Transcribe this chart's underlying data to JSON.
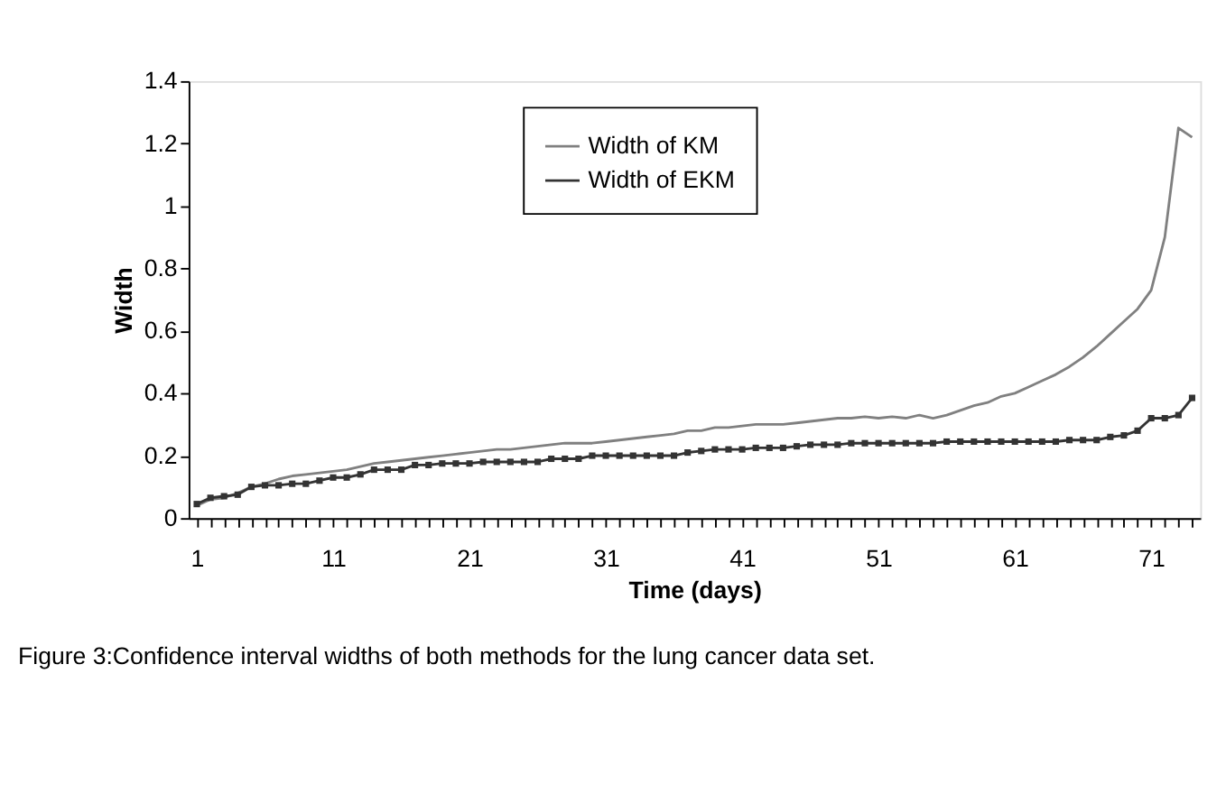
{
  "chart_data": {
    "type": "line",
    "xlabel": "Time (days)",
    "ylabel": "Width",
    "categories": [
      "1",
      null,
      null,
      null,
      null,
      null,
      null,
      null,
      null,
      null,
      "11",
      null,
      null,
      null,
      null,
      null,
      null,
      null,
      null,
      null,
      "21",
      null,
      null,
      null,
      null,
      null,
      null,
      null,
      null,
      null,
      "31",
      null,
      null,
      null,
      null,
      null,
      null,
      null,
      null,
      null,
      "41",
      null,
      null,
      null,
      null,
      null,
      null,
      null,
      null,
      null,
      "51",
      null,
      null,
      null,
      null,
      null,
      null,
      null,
      null,
      null,
      "61",
      null,
      null,
      null,
      null,
      null,
      null,
      null,
      null,
      null,
      "71",
      null,
      null,
      null
    ],
    "series": [
      {
        "name": "Width of KM",
        "color": "#808080",
        "marker": "none",
        "values": [
          0.04,
          0.06,
          0.065,
          0.08,
          0.1,
          0.11,
          0.125,
          0.135,
          0.14,
          0.145,
          0.15,
          0.155,
          0.165,
          0.175,
          0.18,
          0.185,
          0.19,
          0.195,
          0.2,
          0.205,
          0.21,
          0.215,
          0.22,
          0.22,
          0.225,
          0.23,
          0.235,
          0.24,
          0.24,
          0.24,
          0.245,
          0.25,
          0.255,
          0.26,
          0.265,
          0.27,
          0.28,
          0.28,
          0.29,
          0.29,
          0.295,
          0.3,
          0.3,
          0.3,
          0.305,
          0.31,
          0.315,
          0.32,
          0.32,
          0.325,
          0.32,
          0.325,
          0.32,
          0.33,
          0.32,
          0.33,
          0.345,
          0.36,
          0.37,
          0.39,
          0.4,
          0.42,
          0.44,
          0.46,
          0.485,
          0.515,
          0.55,
          0.59,
          0.63,
          0.67,
          0.73,
          0.9,
          1.25,
          1.22
        ]
      },
      {
        "name": "Width of EKM",
        "color": "#333333",
        "marker": "square",
        "values": [
          0.045,
          0.065,
          0.07,
          0.075,
          0.1,
          0.105,
          0.105,
          0.11,
          0.11,
          0.12,
          0.13,
          0.13,
          0.14,
          0.155,
          0.155,
          0.155,
          0.17,
          0.17,
          0.175,
          0.175,
          0.175,
          0.18,
          0.18,
          0.18,
          0.18,
          0.18,
          0.19,
          0.19,
          0.19,
          0.2,
          0.2,
          0.2,
          0.2,
          0.2,
          0.2,
          0.2,
          0.21,
          0.215,
          0.22,
          0.22,
          0.22,
          0.225,
          0.225,
          0.225,
          0.23,
          0.235,
          0.235,
          0.235,
          0.24,
          0.24,
          0.24,
          0.24,
          0.24,
          0.24,
          0.24,
          0.245,
          0.245,
          0.245,
          0.245,
          0.245,
          0.245,
          0.245,
          0.245,
          0.245,
          0.25,
          0.25,
          0.25,
          0.26,
          0.265,
          0.28,
          0.32,
          0.32,
          0.33,
          0.385
        ]
      }
    ],
    "ylim": [
      0,
      1.4
    ],
    "yticks": [
      0,
      0.2,
      0.4,
      0.6,
      0.8,
      1,
      1.2,
      1.4
    ],
    "grid": false,
    "legend": "top",
    "annotations": [
      "Figure 3:Confidence interval widths of both methods for the lung cancer data set."
    ]
  }
}
